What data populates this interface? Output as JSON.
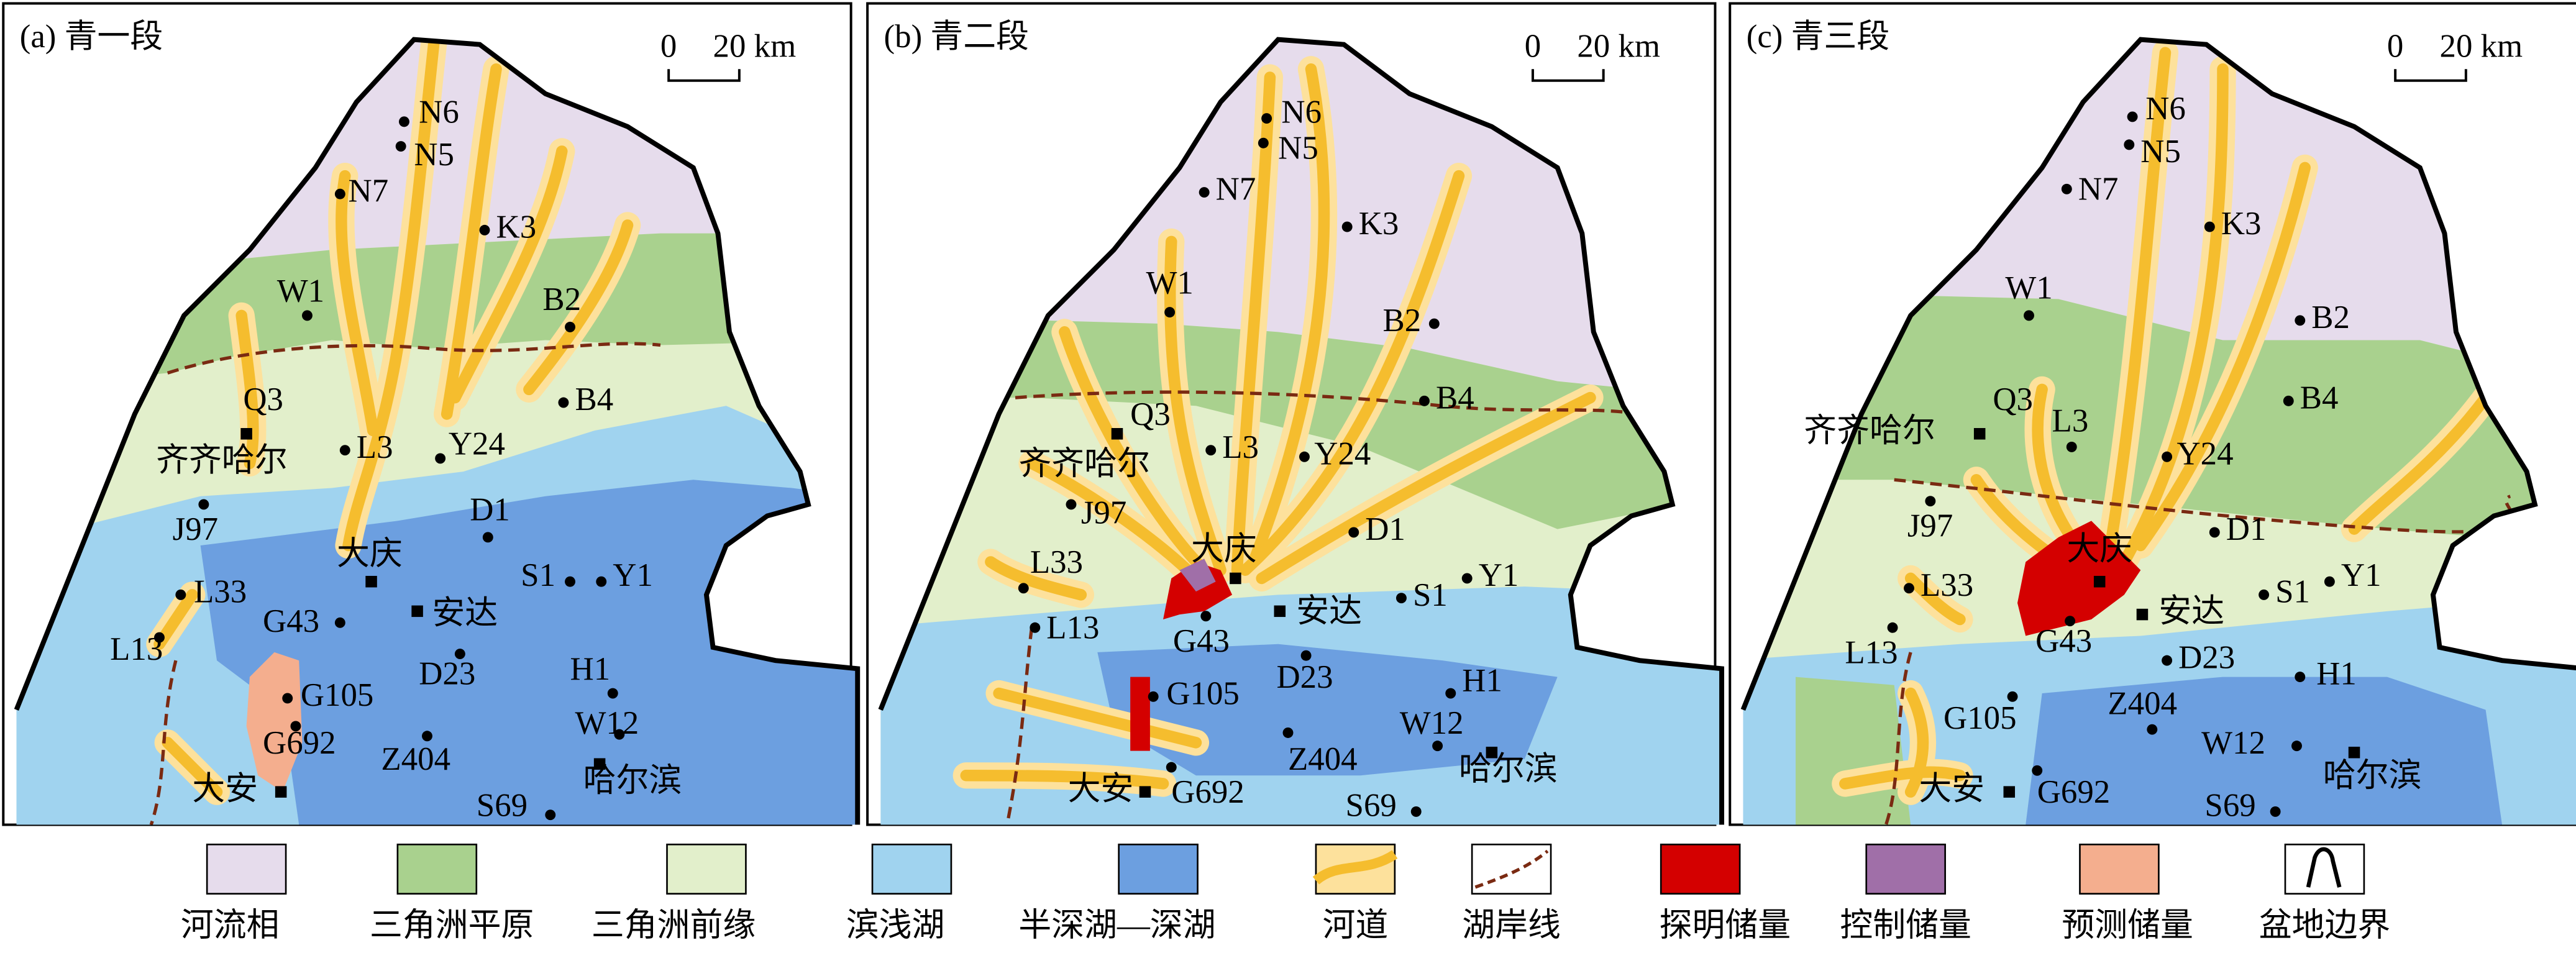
{
  "panels": [
    {
      "title": "(a) 青一段",
      "scale_zero": "0",
      "scale_unit": "20 km",
      "labels": [
        "N6",
        "N5",
        "N7",
        "K3",
        "W1",
        "B2",
        "Q3",
        "B4",
        "齐齐哈尔",
        "L3",
        "Y24",
        "D1",
        "J97",
        "大庆",
        "S1",
        "Y1",
        "L33",
        "安达",
        "G43",
        "L13",
        "D23",
        "H1",
        "G105",
        "W12",
        "G692",
        "Z404",
        "哈尔滨",
        "大安",
        "S69"
      ]
    },
    {
      "title": "(b) 青二段",
      "scale_zero": "0",
      "scale_unit": "20 km",
      "labels": [
        "N6",
        "N5",
        "N7",
        "K3",
        "W1",
        "B2",
        "Q3",
        "B4",
        "齐齐哈尔",
        "L3",
        "Y24",
        "D1",
        "J97",
        "大庆",
        "S1",
        "Y1",
        "L33",
        "安达",
        "G43",
        "L13",
        "D23",
        "H1",
        "G105",
        "W12",
        "G692",
        "Z404",
        "哈尔滨",
        "大安",
        "S69"
      ]
    },
    {
      "title": "(c) 青三段",
      "scale_zero": "0",
      "scale_unit": "20 km",
      "labels": [
        "N6",
        "N5",
        "N7",
        "K3",
        "W1",
        "B2",
        "Q3",
        "B4",
        "齐齐哈尔",
        "L3",
        "Y24",
        "D1",
        "J97",
        "大庆",
        "S1",
        "Y1",
        "L33",
        "安达",
        "G43",
        "L13",
        "D23",
        "H1",
        "G105",
        "W12",
        "G692",
        "Z404",
        "哈尔滨",
        "大安",
        "S69"
      ]
    }
  ],
  "legend": [
    "河流相",
    "三角洲平原",
    "三角洲前缘",
    "滨浅湖",
    "半深湖—深湖",
    "河道",
    "湖岸线",
    "探明储量",
    "控制储量",
    "预测储量",
    "盆地边界"
  ]
}
